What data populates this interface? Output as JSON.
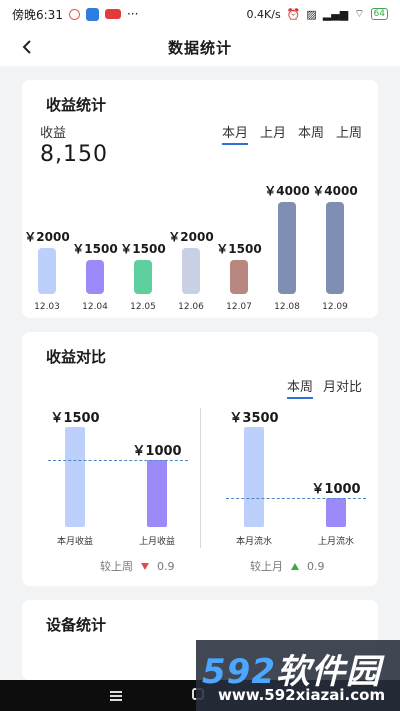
{
  "status_bar": {
    "time": "傍晚6:31",
    "speed": "0.4K/s",
    "battery": "64"
  },
  "header": {
    "title": "数据统计"
  },
  "income_card": {
    "title": "收益统计",
    "income_label": "收益",
    "income_value": "8,150",
    "tabs": [
      "本月",
      "上月",
      "本周",
      "上周"
    ],
    "active_tab": 0
  },
  "chart_data": [
    {
      "type": "bar",
      "categories": [
        "12.03",
        "12.04",
        "12.05",
        "12.06",
        "12.07",
        "12.08",
        "12.09"
      ],
      "values": [
        2000,
        1500,
        1500,
        2000,
        1500,
        4000,
        4000
      ],
      "value_labels": [
        "￥2000",
        "￥1500",
        "￥1500",
        "￥2000",
        "￥1500",
        "￥4000",
        "￥4000"
      ],
      "colors": [
        "#bcd0fb",
        "#9b8af7",
        "#5fcf9f",
        "#c9d0e6",
        "#b8877f",
        "#7f8fb3",
        "#7f8fb3"
      ],
      "ylim": [
        0,
        4000
      ]
    },
    {
      "type": "bar",
      "categories": [
        "本月收益",
        "上月收益"
      ],
      "values": [
        1500,
        1000
      ],
      "value_labels": [
        "￥1500",
        "￥1000"
      ],
      "colors": [
        "#bcd0fb",
        "#9b8af7"
      ],
      "ylim": [
        0,
        1500
      ]
    },
    {
      "type": "bar",
      "categories": [
        "本月流水",
        "上月流水"
      ],
      "values": [
        3500,
        1000
      ],
      "value_labels": [
        "￥3500",
        "￥1000"
      ],
      "colors": [
        "#bcd0fb",
        "#9b8af7"
      ],
      "ylim": [
        0,
        3500
      ]
    }
  ],
  "compare_card": {
    "title": "收益对比",
    "tabs": [
      "本周",
      "月对比"
    ],
    "active_tab": 0,
    "left_compare": {
      "label": "较上周",
      "value": "0.9",
      "trend": "down"
    },
    "right_compare": {
      "label": "较上月",
      "value": "0.9",
      "trend": "up"
    }
  },
  "device_card": {
    "title": "设备统计"
  },
  "watermark": {
    "brand_num": "592",
    "brand_text": "软件园",
    "url": "www.592xiazai.com"
  }
}
